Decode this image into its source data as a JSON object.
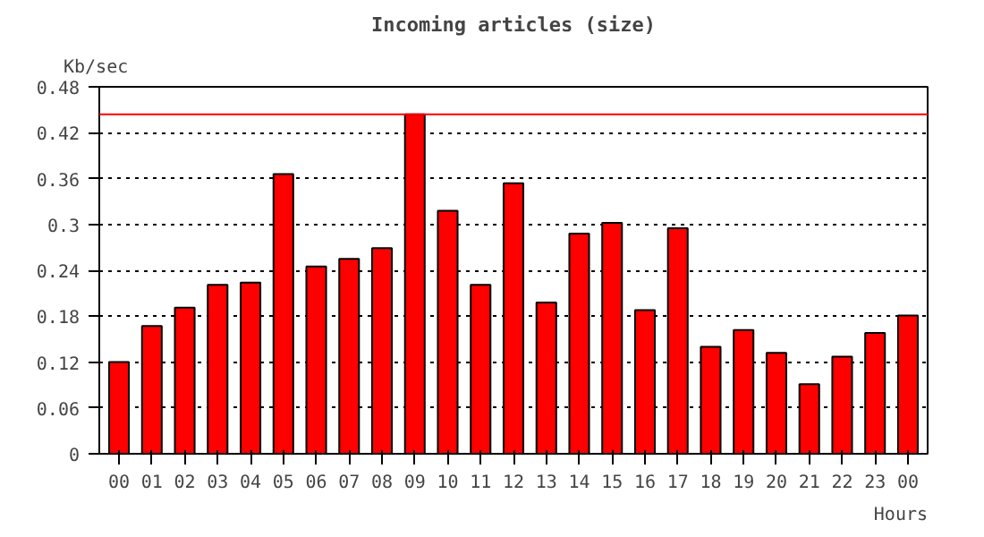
{
  "chart_data": {
    "type": "bar",
    "title": "Incoming articles (size)",
    "xlabel": "Hours",
    "ylabel": "Kb/sec",
    "categories": [
      "00",
      "01",
      "02",
      "03",
      "04",
      "05",
      "06",
      "07",
      "08",
      "09",
      "10",
      "11",
      "12",
      "13",
      "14",
      "15",
      "16",
      "17",
      "18",
      "19",
      "20",
      "21",
      "22",
      "23",
      "00"
    ],
    "values": [
      0.12,
      0.167,
      0.191,
      0.221,
      0.224,
      0.366,
      0.245,
      0.255,
      0.269,
      0.444,
      0.318,
      0.221,
      0.354,
      0.198,
      0.288,
      0.302,
      0.188,
      0.295,
      0.14,
      0.162,
      0.132,
      0.091,
      0.127,
      0.158,
      0.181
    ],
    "color": "#ff0000",
    "ylim": [
      0,
      0.48
    ],
    "yticks": [
      0,
      0.06,
      0.12,
      0.18,
      0.24,
      0.3,
      0.36,
      0.42,
      0.48
    ],
    "ref_lines": [
      {
        "axis": "y",
        "value": 0.444,
        "label": null,
        "color": "#ff0000"
      }
    ],
    "grid": "y"
  }
}
